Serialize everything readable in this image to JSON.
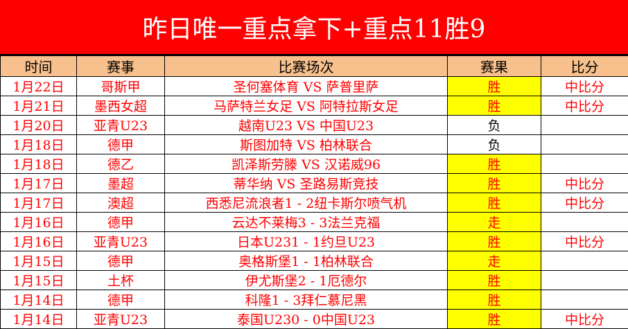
{
  "title": "昨日唯一重点拿下+重点11胜9",
  "headers": [
    "时间",
    "赛事",
    "比赛场次",
    "赛果",
    "比分"
  ],
  "colors": {
    "title_bg": "#ff0000",
    "header_bg": "#f8c08c",
    "win_bg": "#ffff00",
    "text": "#ff0000"
  },
  "rows": [
    {
      "date": "1月22日",
      "league": "哥斯甲",
      "match": "圣何塞体育 VS 萨普里萨",
      "result": "胜",
      "score": "中比分"
    },
    {
      "date": "1月21日",
      "league": "墨西女超",
      "match": "马萨特兰女足 VS 阿特拉斯女足",
      "result": "胜",
      "score": "中比分"
    },
    {
      "date": "1月20日",
      "league": "亚青U23",
      "match": "越南U23 VS 中国U23",
      "result": "负",
      "score": ""
    },
    {
      "date": "1月18日",
      "league": "德甲",
      "match": "斯图加特 VS 柏林联合",
      "result": "负",
      "score": ""
    },
    {
      "date": "1月18日",
      "league": "德乙",
      "match": "凯泽斯劳滕 VS 汉诺威96",
      "result": "胜",
      "score": ""
    },
    {
      "date": "1月17日",
      "league": "墨超",
      "match": "蒂华纳 VS 圣路易斯竞技",
      "result": "胜",
      "score": "中比分"
    },
    {
      "date": "1月17日",
      "league": "澳超",
      "match": "西悉尼流浪者1 - 2纽卡斯尔喷气机",
      "result": "胜",
      "score": "中比分"
    },
    {
      "date": "1月16日",
      "league": "德甲",
      "match": "云达不莱梅3 - 3法兰克福",
      "result": "走",
      "score": ""
    },
    {
      "date": "1月16日",
      "league": "亚青U23",
      "match": "日本U231 - 1约旦U23",
      "result": "胜",
      "score": "中比分"
    },
    {
      "date": "1月15日",
      "league": "德甲",
      "match": "奥格斯堡1 - 1柏林联合",
      "result": "走",
      "score": ""
    },
    {
      "date": "1月15日",
      "league": "土杯",
      "match": "伊尤斯堡2 - 1厄德尔",
      "result": "胜",
      "score": ""
    },
    {
      "date": "1月14日",
      "league": "德甲",
      "match": "科隆1 - 3拜仁慕尼黑",
      "result": "胜",
      "score": ""
    },
    {
      "date": "1月14日",
      "league": "亚青U23",
      "match": "泰国U230 - 0中国U23",
      "result": "胜",
      "score": "中比分"
    }
  ]
}
